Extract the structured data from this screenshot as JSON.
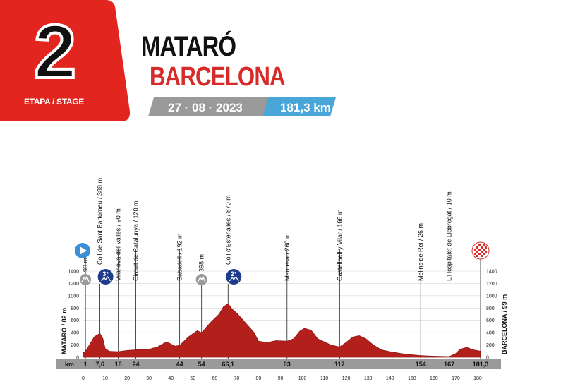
{
  "header": {
    "stage_number": "2",
    "stage_label": "ETAPA / STAGE",
    "start_town": "MATARÓ",
    "end_town": "BARCELONA",
    "date": "27 · 08 · 2023",
    "distance": "181,3 km"
  },
  "colors": {
    "badge_red": "#e2261f",
    "profile_red": "#b3201b",
    "date_gray": "#9a9a9a",
    "distance_blue": "#4aa6d9",
    "climb_navy": "#1f3c8c",
    "start_blue": "#3a8fd6"
  },
  "chart_data": {
    "type": "area",
    "title": "",
    "xlabel": "km",
    "ylabel": "",
    "xlim": [
      0,
      181.3
    ],
    "ylim": [
      0,
      1400
    ],
    "left_axis_label": "MATARÓ / 82 m",
    "right_axis_label": "BARCELONA / 99 m",
    "y_ticks": [
      0,
      200,
      400,
      600,
      800,
      1000,
      1200,
      1400
    ],
    "x_ticks": [
      0,
      10,
      20,
      30,
      40,
      50,
      60,
      70,
      80,
      90,
      100,
      110,
      120,
      130,
      140,
      150,
      160,
      170,
      180
    ],
    "km_markers": [
      "1",
      "7,6",
      "16",
      "24",
      "44",
      "54",
      "66,1",
      "93",
      "117",
      "154",
      "167",
      "181,3"
    ],
    "km_marker_values": [
      1,
      7.6,
      16,
      24,
      44,
      54,
      66.1,
      93,
      117,
      154,
      167,
      181.3
    ],
    "waypoints": [
      {
        "km": 1,
        "label": "93 m",
        "icon": "sprint-icon"
      },
      {
        "km": 7.6,
        "label": "Coll de Sant Bartomeu / 388 m",
        "icon": "climb-3rd-category-icon",
        "badge": "3°"
      },
      {
        "km": 16,
        "label": "Vilanova del Vallès / 90 m"
      },
      {
        "km": 24,
        "label": "Circuit de Catalunya / 120 m"
      },
      {
        "km": 44,
        "label": "Sabadell / 192 m"
      },
      {
        "km": 54,
        "label": "398 m",
        "icon": "sprint-icon"
      },
      {
        "km": 66.1,
        "label": "Coll d'Estenalles / 870 m",
        "icon": "climb-2nd-category-icon",
        "badge": "2°"
      },
      {
        "km": 93,
        "label": "Manresa / 260 m"
      },
      {
        "km": 117,
        "label": "Castellbell y Vilar / 166 m"
      },
      {
        "km": 154,
        "label": "Molins de Rei / 26 m"
      },
      {
        "km": 167,
        "label": "L'Hospitalet de Llobregat / 10 m"
      }
    ],
    "x": [
      0,
      1,
      3,
      5,
      7.6,
      9,
      10,
      12,
      16,
      20,
      24,
      30,
      34,
      38,
      42,
      44,
      48,
      52,
      54,
      58,
      62,
      64,
      66.1,
      68,
      70,
      72,
      74,
      76,
      78,
      80,
      84,
      88,
      93,
      96,
      99,
      101,
      104,
      107,
      110,
      113,
      117,
      120,
      123,
      126,
      129,
      132,
      136,
      140,
      145,
      150,
      154,
      158,
      162,
      167,
      170,
      172,
      175,
      178,
      181.3
    ],
    "y": [
      82,
      93,
      210,
      330,
      388,
      300,
      140,
      95,
      90,
      110,
      120,
      130,
      170,
      250,
      180,
      192,
      330,
      430,
      398,
      560,
      700,
      820,
      870,
      780,
      720,
      640,
      560,
      480,
      400,
      260,
      240,
      270,
      260,
      300,
      430,
      470,
      440,
      300,
      250,
      200,
      166,
      240,
      330,
      350,
      300,
      210,
      120,
      90,
      60,
      40,
      26,
      20,
      15,
      10,
      60,
      130,
      160,
      120,
      99
    ]
  }
}
